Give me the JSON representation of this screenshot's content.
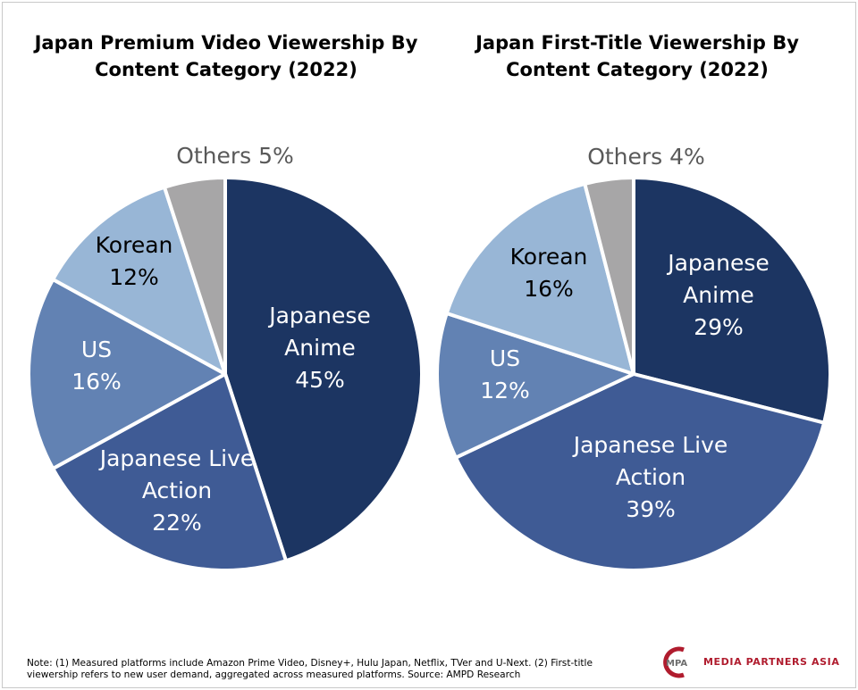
{
  "chart_data": [
    {
      "type": "pie",
      "title": "Japan Premium Video Viewership By\nContent Category (2022)",
      "slices": [
        {
          "label": "Japanese\nAnime",
          "value": 45,
          "value_label": "45%",
          "color": "#1c3562"
        },
        {
          "label": "Japanese Live\nAction",
          "value": 22,
          "value_label": "22%",
          "color": "#3f5b95"
        },
        {
          "label": "US",
          "value": 16,
          "value_label": "16%",
          "color": "#6282b3"
        },
        {
          "label": "Korean",
          "value": 12,
          "value_label": "12%",
          "color": "#98b6d6"
        },
        {
          "label": "Others",
          "value": 5,
          "value_label": "5%",
          "color": "#a7a6a7"
        }
      ]
    },
    {
      "type": "pie",
      "title": "Japan First-Title Viewership By\nContent Category (2022)",
      "slices": [
        {
          "label": "Japanese\nAnime",
          "value": 29,
          "value_label": "29%",
          "color": "#1c3562"
        },
        {
          "label": "Japanese Live\nAction",
          "value": 39,
          "value_label": "39%",
          "color": "#3f5b95"
        },
        {
          "label": "US",
          "value": 12,
          "value_label": "12%",
          "color": "#6282b3"
        },
        {
          "label": "Korean",
          "value": 16,
          "value_label": "16%",
          "color": "#98b6d6"
        },
        {
          "label": "Others",
          "value": 4,
          "value_label": "4%",
          "color": "#a7a6a7"
        }
      ]
    }
  ],
  "footnote": "Note: (1) Measured platforms include Amazon Prime Video, Disney+, Hulu Japan, Netflix, TVer and U-Next. (2) First-title viewership refers to new user demand, aggregated across measured platforms. Source: AMPD Research",
  "logo": {
    "monogram": "MPA",
    "wordmark": "MEDIA PARTNERS ASIA",
    "color": "#b01c2e"
  }
}
